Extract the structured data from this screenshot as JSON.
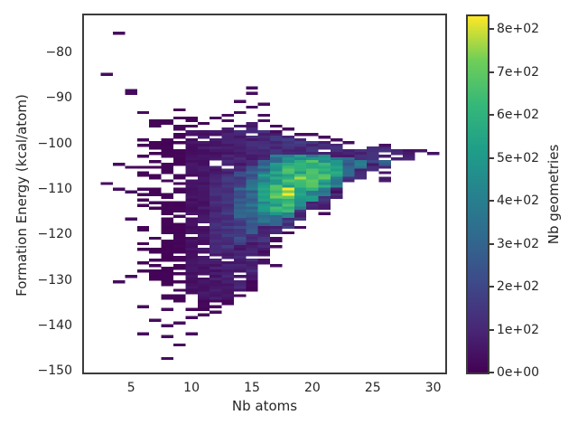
{
  "figure": {
    "background": "#ffffff",
    "text_color": "#262626",
    "spine_color": "#3b3b3b"
  },
  "chart_data": {
    "type": "heatmap",
    "title": "",
    "xlabel": "Nb atoms",
    "ylabel": "Formation Energy (kcal/atom)",
    "colorbar_label": "Nb geometries",
    "legend_position": "right-colorbar",
    "grid": false,
    "xlim": [
      1.1,
      31.0
    ],
    "ylim": [
      -150.3,
      -71.9
    ],
    "x_ticks": [
      5,
      10,
      15,
      20,
      25,
      30
    ],
    "x_tick_labels": [
      "5",
      "10",
      "15",
      "20",
      "25",
      "30"
    ],
    "y_ticks": [
      -80,
      -90,
      -100,
      -110,
      -120,
      -130,
      -140,
      -150
    ],
    "y_tick_labels": [
      "−80",
      "−90",
      "−100",
      "−110",
      "−120",
      "−130",
      "−140",
      "−150"
    ],
    "colorbar_ticks": [
      0,
      100,
      200,
      300,
      400,
      500,
      600,
      700,
      800
    ],
    "colorbar_tick_labels": [
      "0e+00",
      "1e+02",
      "2e+02",
      "3e+02",
      "4e+02",
      "5e+02",
      "6e+02",
      "7e+02",
      "8e+02"
    ],
    "vmin": 0,
    "vmax": 830,
    "bin_width_x": 1.0,
    "bin_height_y": 0.6,
    "colormap": {
      "name": "viridis",
      "stops": [
        "#440154",
        "#482878",
        "#3e4989",
        "#31688e",
        "#26828e",
        "#1f9e89",
        "#35b779",
        "#6ece58",
        "#fde725"
      ]
    },
    "columns": [
      {
        "x": 6,
        "segments": [
          [
            -98.5,
            -128,
            9,
            0.72,
            0.9
          ]
        ]
      },
      {
        "x": 7,
        "segments": [
          [
            -94.5,
            -96.5,
            9,
            0.5,
            0.9
          ],
          [
            -99,
            -131,
            9,
            0.45,
            0.9
          ]
        ]
      },
      {
        "x": 8,
        "segments": [
          [
            -94.5,
            -96,
            10,
            0.5,
            0.9
          ],
          [
            -97,
            -134,
            10,
            0.33,
            0.9
          ]
        ]
      },
      {
        "x": 9,
        "segments": [
          [
            -92.5,
            -95.5,
            10,
            0.45,
            0.9
          ],
          [
            -96,
            -135,
            12,
            0.3,
            0.9
          ]
        ]
      },
      {
        "x": 10,
        "segments": [
          [
            -94,
            -96.5,
            10,
            0.55,
            0.9
          ],
          [
            -96.5,
            -99.5,
            45,
            0.3,
            0.9
          ],
          [
            -99.5,
            -133,
            45,
            0.05,
            0.9
          ],
          [
            -133,
            -136.5,
            14,
            0.4,
            0.9
          ]
        ]
      },
      {
        "x": 11,
        "segments": [
          [
            -94.5,
            -96.5,
            10,
            0.55,
            0.9
          ],
          [
            -96.5,
            -99.5,
            55,
            0.3,
            0.9
          ],
          [
            -99.5,
            -134,
            55,
            0.05,
            0.9
          ],
          [
            -134,
            -136.5,
            13,
            0.45,
            0.9
          ]
        ]
      },
      {
        "x": 12,
        "segments": [
          [
            -96.5,
            -99,
            65,
            0.3,
            0.9
          ],
          [
            -99,
            -134.5,
            65,
            0.04,
            0.9
          ],
          [
            -108,
            -124,
            110,
            0,
            0.6
          ],
          [
            -134.5,
            -136.2,
            12,
            0.45,
            0.9
          ]
        ]
      },
      {
        "x": 13,
        "segments": [
          [
            -96,
            -98.5,
            75,
            0.25,
            0.9
          ],
          [
            -98.5,
            -134,
            75,
            0.04,
            0.9
          ],
          [
            -107,
            -123,
            140,
            0,
            0.6
          ],
          [
            -134,
            -135.6,
            12,
            0.5,
            0.9
          ]
        ]
      },
      {
        "x": 14,
        "segments": [
          [
            -96,
            -98,
            85,
            0.25,
            0.9
          ],
          [
            -98,
            -132.5,
            85,
            0.04,
            0.9
          ],
          [
            -106,
            -122,
            190,
            0,
            0.6
          ],
          [
            -110,
            -116,
            260,
            0,
            0.5
          ],
          [
            -132.5,
            -134.5,
            12,
            0.5,
            0.9
          ]
        ]
      },
      {
        "x": 15,
        "segments": [
          [
            -95.5,
            -97.5,
            95,
            0.25,
            0.9
          ],
          [
            -97.5,
            -130,
            95,
            0.04,
            0.9
          ],
          [
            -105,
            -120,
            250,
            0,
            0.5
          ],
          [
            -108,
            -115.5,
            330,
            0,
            0.45
          ],
          [
            -130,
            -133,
            14,
            0.45,
            0.9
          ]
        ]
      },
      {
        "x": 16,
        "segments": [
          [
            -97,
            -99,
            110,
            0.25,
            0.9
          ],
          [
            -99,
            -123.5,
            110,
            0.03,
            0.9
          ],
          [
            -103.5,
            -118,
            330,
            0,
            0.45
          ],
          [
            -106,
            -115.5,
            450,
            0,
            0.4
          ],
          [
            -109.5,
            -112.5,
            520,
            0,
            0.35
          ],
          [
            -123.5,
            -127,
            35,
            0.45,
            0.9
          ]
        ]
      },
      {
        "x": 17,
        "segments": [
          [
            -98,
            -120,
            120,
            0.03,
            0.9
          ],
          [
            -102.5,
            -118,
            380,
            0,
            0.45
          ],
          [
            -104.5,
            -115.5,
            560,
            0,
            0.35
          ],
          [
            -109,
            -112.5,
            650,
            0,
            0.3
          ],
          [
            -120,
            -123.5,
            30,
            0.55,
            0.9
          ]
        ]
      },
      {
        "x": 18,
        "segments": [
          [
            -98.5,
            -118.5,
            130,
            0.03,
            0.9
          ],
          [
            -102.5,
            -116.5,
            440,
            0,
            0.4
          ],
          [
            -104.5,
            -115,
            600,
            0,
            0.3
          ],
          [
            -110,
            -112.3,
            820,
            0,
            0.3
          ]
        ]
      },
      {
        "x": 19,
        "segments": [
          [
            -99,
            -117,
            130,
            0.03,
            0.9
          ],
          [
            -102.5,
            -114.5,
            440,
            0,
            0.4
          ],
          [
            -104,
            -112,
            580,
            0,
            0.3
          ],
          [
            -106.5,
            -108.4,
            690,
            0,
            0.3
          ],
          [
            -117,
            -120.2,
            25,
            0.5,
            0.9
          ]
        ]
      },
      {
        "x": 20,
        "segments": [
          [
            -99.5,
            -114.5,
            130,
            0.03,
            0.9
          ],
          [
            -102.5,
            -112.5,
            450,
            0,
            0.4
          ],
          [
            -104,
            -110.5,
            610,
            0,
            0.3
          ],
          [
            -106.8,
            -108.5,
            740,
            0,
            0.25
          ]
        ]
      },
      {
        "x": 21,
        "segments": [
          [
            -99.5,
            -114.5,
            120,
            0.04,
            0.9
          ],
          [
            -102.5,
            -111.5,
            430,
            0,
            0.4
          ],
          [
            -104.5,
            -110,
            540,
            0,
            0.35
          ],
          [
            -107,
            -108.4,
            620,
            0,
            0.3
          ]
        ]
      },
      {
        "x": 22,
        "segments": [
          [
            -100,
            -112,
            110,
            0.06,
            0.9
          ],
          [
            -103,
            -110,
            420,
            0,
            0.4
          ],
          [
            -104,
            -107.6,
            520,
            0,
            0.35
          ]
        ]
      },
      {
        "x": 23,
        "segments": [
          [
            -100.5,
            -108.5,
            100,
            0.08,
            0.9
          ],
          [
            -103,
            -107.5,
            300,
            0,
            0.45
          ]
        ]
      },
      {
        "x": 24,
        "segments": [
          [
            -100.5,
            -107.7,
            110,
            0.1,
            0.9
          ],
          [
            -103.5,
            -105.6,
            430,
            0,
            0.4
          ]
        ]
      },
      {
        "x": 25,
        "segments": [
          [
            -100.8,
            -106,
            90,
            0.2,
            0.9
          ],
          [
            -102,
            -104.2,
            170,
            0,
            0.5
          ]
        ]
      },
      {
        "x": 26,
        "segments": [
          [
            -101,
            -105.5,
            100,
            0.22,
            0.9
          ],
          [
            -103.5,
            -105,
            300,
            0,
            0.45
          ],
          [
            -106,
            -108.5,
            60,
            0.35,
            0.9
          ]
        ]
      },
      {
        "x": 27,
        "segments": [
          [
            -101.5,
            -104.5,
            85,
            0.2,
            0.9
          ]
        ]
      },
      {
        "x": 28,
        "segments": [
          [
            -101.6,
            -103.4,
            70,
            0.25,
            0.9
          ]
        ]
      }
    ],
    "points": [
      [
        3,
        -84.6,
        30
      ],
      [
        3,
        -108.7,
        30
      ],
      [
        4,
        -75.6,
        30
      ],
      [
        4,
        -104.6,
        30
      ],
      [
        4,
        -109.8,
        30
      ],
      [
        4,
        -130.6,
        30
      ],
      [
        5,
        -88.2,
        30
      ],
      [
        5,
        -89.3,
        30
      ],
      [
        5,
        -105.1,
        30
      ],
      [
        5,
        -110.5,
        30
      ],
      [
        5,
        -116.8,
        30
      ],
      [
        5,
        -129.2,
        30
      ],
      [
        6,
        -92.9,
        30
      ],
      [
        6,
        -135.6,
        30
      ],
      [
        6,
        -141.8,
        30
      ],
      [
        7,
        -138.6,
        30
      ],
      [
        8,
        -136.6,
        30
      ],
      [
        8,
        -140.0,
        30
      ],
      [
        8,
        -142.4,
        30
      ],
      [
        8,
        -147.0,
        30
      ],
      [
        9,
        -139.4,
        30
      ],
      [
        9,
        -144.2,
        30
      ],
      [
        10,
        -138.2,
        30
      ],
      [
        10,
        -141.7,
        30
      ],
      [
        11,
        -137.6,
        30
      ],
      [
        12,
        -94.6,
        30
      ],
      [
        12,
        -136.8,
        30
      ],
      [
        13,
        -93.9,
        30
      ],
      [
        13,
        -94.8,
        30
      ],
      [
        14,
        -90.6,
        30
      ],
      [
        14,
        -93.1,
        30
      ],
      [
        15,
        -87.9,
        30
      ],
      [
        15,
        -89.1,
        30
      ],
      [
        15,
        -92.1,
        30
      ],
      [
        16,
        -91.2,
        30
      ],
      [
        16,
        -93.6,
        30
      ],
      [
        16,
        -95.2,
        30
      ],
      [
        17,
        -95.9,
        30
      ],
      [
        17,
        -97.2,
        30
      ],
      [
        17,
        -126.5,
        30
      ],
      [
        18,
        -96.8,
        30
      ],
      [
        18,
        -119.5,
        30
      ],
      [
        19,
        -98.3,
        30
      ],
      [
        20,
        -98.2,
        30
      ],
      [
        21,
        -98.6,
        30
      ],
      [
        21,
        -115.5,
        30
      ],
      [
        22,
        -99.2,
        30
      ],
      [
        22,
        -110.4,
        40
      ],
      [
        23,
        -99.8,
        30
      ],
      [
        26,
        -100.4,
        40
      ],
      [
        29,
        -101.6,
        55
      ],
      [
        30,
        -101.9,
        45
      ]
    ]
  }
}
